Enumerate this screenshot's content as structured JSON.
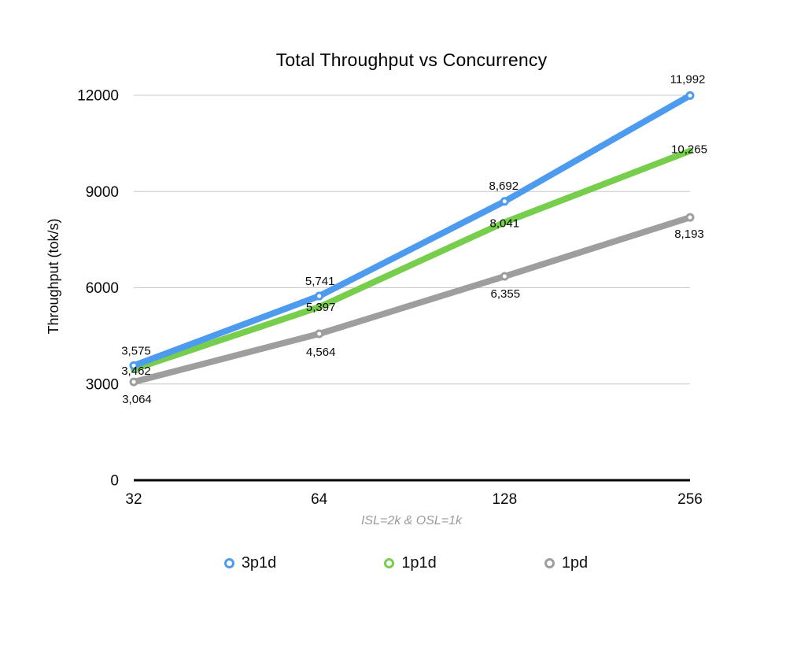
{
  "chart_data": {
    "type": "line",
    "title": "Total Throughput vs Concurrency",
    "subtitle": "ISL=2k & OSL=1k",
    "ylabel": "Throughput (tok/s)",
    "xlabel": "",
    "x_categories": [
      "32",
      "64",
      "128",
      "256"
    ],
    "y_ticks": [
      0,
      3000,
      6000,
      9000,
      12000
    ],
    "y_tick_labels": [
      "0",
      "3000",
      "6000",
      "9000",
      "12000"
    ],
    "ylim": [
      0,
      12000
    ],
    "grid": "horizontal-only",
    "legend_position": "bottom",
    "colors": {
      "grid": "#c8c8c8",
      "axis": "#000000",
      "tick_text": "#0a0a0a",
      "data_label_text": "#0a0a0a",
      "subtitle_text": "#9b9b9b"
    },
    "series": [
      {
        "name": "3p1d",
        "color": "#4d9bee",
        "values": [
          3575,
          5741,
          8692,
          11992
        ],
        "labels": [
          "3,575",
          "5,741",
          "8,692",
          "11,992"
        ],
        "show_markers": true,
        "label_offsets": [
          [
            3,
            -19
          ],
          [
            1,
            -19
          ],
          [
            -1,
            -20
          ],
          [
            -3,
            -21
          ]
        ]
      },
      {
        "name": "1p1d",
        "color": "#77ce4c",
        "values": [
          3462,
          5397,
          8041,
          10265
        ],
        "labels": [
          "3,462",
          "5,397",
          "8,041",
          "10,265"
        ],
        "show_markers": false,
        "label_offsets": [
          [
            3,
            2
          ],
          [
            2,
            0
          ],
          [
            0,
            1
          ],
          [
            -1,
            -2
          ]
        ]
      },
      {
        "name": "1pd",
        "color": "#9e9e9e",
        "values": [
          3064,
          4564,
          6355,
          8193
        ],
        "labels": [
          "3,064",
          "4,564",
          "6,355",
          "8,193"
        ],
        "show_markers": true,
        "label_offsets": [
          [
            4,
            22
          ],
          [
            2,
            23
          ],
          [
            1,
            22
          ],
          [
            -1,
            21
          ]
        ]
      }
    ]
  }
}
